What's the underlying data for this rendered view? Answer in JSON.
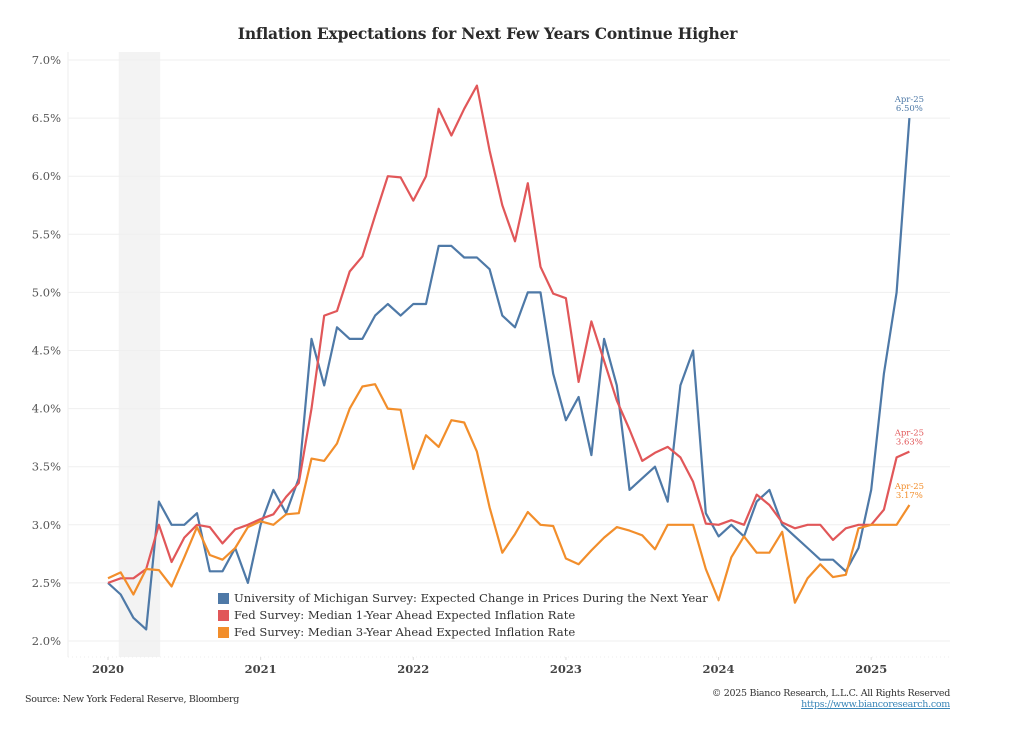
{
  "chart_data": {
    "type": "line",
    "title": "Inflation Expectations for Next Few Years Continue Higher",
    "xlabel": "",
    "ylabel": "",
    "ylim": [
      2.0,
      7.0
    ],
    "yticks": [
      "2.0%",
      "2.5%",
      "3.0%",
      "3.5%",
      "4.0%",
      "4.5%",
      "5.0%",
      "5.5%",
      "6.0%",
      "6.5%",
      "7.0%"
    ],
    "ytick_values": [
      2.0,
      2.5,
      3.0,
      3.5,
      4.0,
      4.5,
      5.0,
      5.5,
      6.0,
      6.5,
      7.0
    ],
    "xticks": [
      "2020",
      "2021",
      "2022",
      "2023",
      "2024",
      "2025"
    ],
    "x_start": "Jan-2020",
    "x_end": "Apr-2025",
    "x_frequency": "monthly",
    "grid": true,
    "recession_shading": {
      "start": "Feb-2020",
      "end": "Apr-2020"
    },
    "legend_position": "bottom-center-inside",
    "series": [
      {
        "name": "University of Michigan Survey: Expected Change in Prices During the Next Year",
        "color": "#4e79a7",
        "values": [
          2.5,
          2.4,
          2.2,
          2.1,
          3.2,
          3.0,
          3.0,
          3.1,
          2.6,
          2.6,
          2.8,
          2.5,
          3.0,
          3.3,
          3.1,
          3.4,
          4.6,
          4.2,
          4.7,
          4.6,
          4.6,
          4.8,
          4.9,
          4.8,
          4.9,
          4.9,
          5.4,
          5.4,
          5.3,
          5.3,
          5.2,
          4.8,
          4.7,
          5.0,
          5.0,
          4.3,
          3.9,
          4.1,
          3.6,
          4.6,
          4.2,
          3.3,
          3.4,
          3.5,
          3.2,
          4.2,
          4.5,
          3.1,
          2.9,
          3.0,
          2.9,
          3.2,
          3.3,
          3.0,
          2.9,
          2.8,
          2.7,
          2.7,
          2.6,
          2.8,
          3.3,
          4.3,
          5.0,
          6.5
        ]
      },
      {
        "name": "Fed Survey: Median 1-Year Ahead Expected Inflation Rate",
        "color": "#e15759",
        "values": [
          2.5,
          2.54,
          2.54,
          2.62,
          3.0,
          2.68,
          2.89,
          3.0,
          2.98,
          2.84,
          2.96,
          3.0,
          3.05,
          3.09,
          3.24,
          3.36,
          4.0,
          4.8,
          4.84,
          5.18,
          5.31,
          5.66,
          6.0,
          5.99,
          5.79,
          6.0,
          6.58,
          6.35,
          6.58,
          6.78,
          6.22,
          5.75,
          5.44,
          5.94,
          5.22,
          4.99,
          4.95,
          4.23,
          4.75,
          4.41,
          4.07,
          3.82,
          3.55,
          3.62,
          3.67,
          3.58,
          3.37,
          3.01,
          3.0,
          3.04,
          3.0,
          3.26,
          3.17,
          3.02,
          2.97,
          3.0,
          3.0,
          2.87,
          2.97,
          3.0,
          3.0,
          3.13,
          3.58,
          3.63
        ]
      },
      {
        "name": "Fed Survey: Median 3-Year Ahead Expected Inflation Rate",
        "color": "#f28e2b",
        "values": [
          2.54,
          2.59,
          2.4,
          2.62,
          2.61,
          2.47,
          2.72,
          2.98,
          2.74,
          2.7,
          2.8,
          2.98,
          3.03,
          3.0,
          3.09,
          3.1,
          3.57,
          3.55,
          3.7,
          4.0,
          4.19,
          4.21,
          4.0,
          3.99,
          3.48,
          3.77,
          3.67,
          3.9,
          3.88,
          3.63,
          3.15,
          2.76,
          2.92,
          3.11,
          3.0,
          2.99,
          2.71,
          2.66,
          2.78,
          2.89,
          2.98,
          2.95,
          2.91,
          2.79,
          3.0,
          3.0,
          3.0,
          2.62,
          2.35,
          2.72,
          2.9,
          2.76,
          2.76,
          2.94,
          2.33,
          2.54,
          2.66,
          2.55,
          2.57,
          2.97,
          3.0,
          3.0,
          3.0,
          3.17
        ]
      }
    ],
    "annotations": [
      {
        "series": 0,
        "label_line1": "Apr-25",
        "label_line2": "6.50%"
      },
      {
        "series": 1,
        "label_line1": "Apr-25",
        "label_line2": "3.63%"
      },
      {
        "series": 2,
        "label_line1": "Apr-25",
        "label_line2": "3.17%"
      }
    ]
  },
  "footer": {
    "source": "Source: New York Federal Reserve, Bloomberg",
    "copyright": "© 2025 Bianco Research, L.L.C. All Rights Reserved",
    "website": "https://www.biancoresearch.com"
  }
}
